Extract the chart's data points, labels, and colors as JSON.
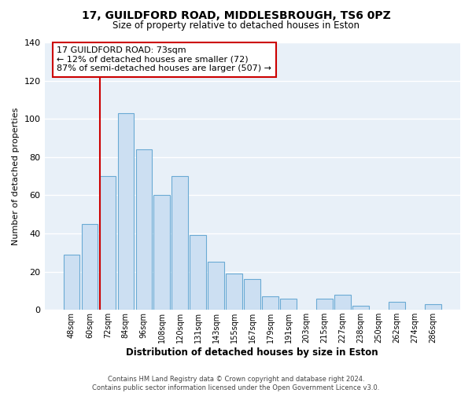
{
  "title": "17, GUILDFORD ROAD, MIDDLESBROUGH, TS6 0PZ",
  "subtitle": "Size of property relative to detached houses in Eston",
  "xlabel": "Distribution of detached houses by size in Eston",
  "ylabel": "Number of detached properties",
  "bar_labels": [
    "48sqm",
    "60sqm",
    "72sqm",
    "84sqm",
    "96sqm",
    "108sqm",
    "120sqm",
    "131sqm",
    "143sqm",
    "155sqm",
    "167sqm",
    "179sqm",
    "191sqm",
    "203sqm",
    "215sqm",
    "227sqm",
    "238sqm",
    "250sqm",
    "262sqm",
    "274sqm",
    "286sqm"
  ],
  "bar_values": [
    29,
    45,
    70,
    103,
    84,
    60,
    70,
    39,
    25,
    19,
    16,
    7,
    6,
    0,
    6,
    8,
    2,
    0,
    4,
    0,
    3
  ],
  "bar_color": "#ccdff2",
  "bar_edge_color": "#6aaad4",
  "vline_x_index": 2,
  "vline_color": "#cc0000",
  "ylim": [
    0,
    140
  ],
  "yticks": [
    0,
    20,
    40,
    60,
    80,
    100,
    120,
    140
  ],
  "annotation_title": "17 GUILDFORD ROAD: 73sqm",
  "annotation_line1": "← 12% of detached houses are smaller (72)",
  "annotation_line2": "87% of semi-detached houses are larger (507) →",
  "annotation_box_color": "#ffffff",
  "annotation_box_edge": "#cc0000",
  "footer1": "Contains HM Land Registry data © Crown copyright and database right 2024.",
  "footer2": "Contains public sector information licensed under the Open Government Licence v3.0.",
  "background_color": "#ffffff",
  "plot_bg_color": "#e8f0f8",
  "grid_color": "#ffffff"
}
